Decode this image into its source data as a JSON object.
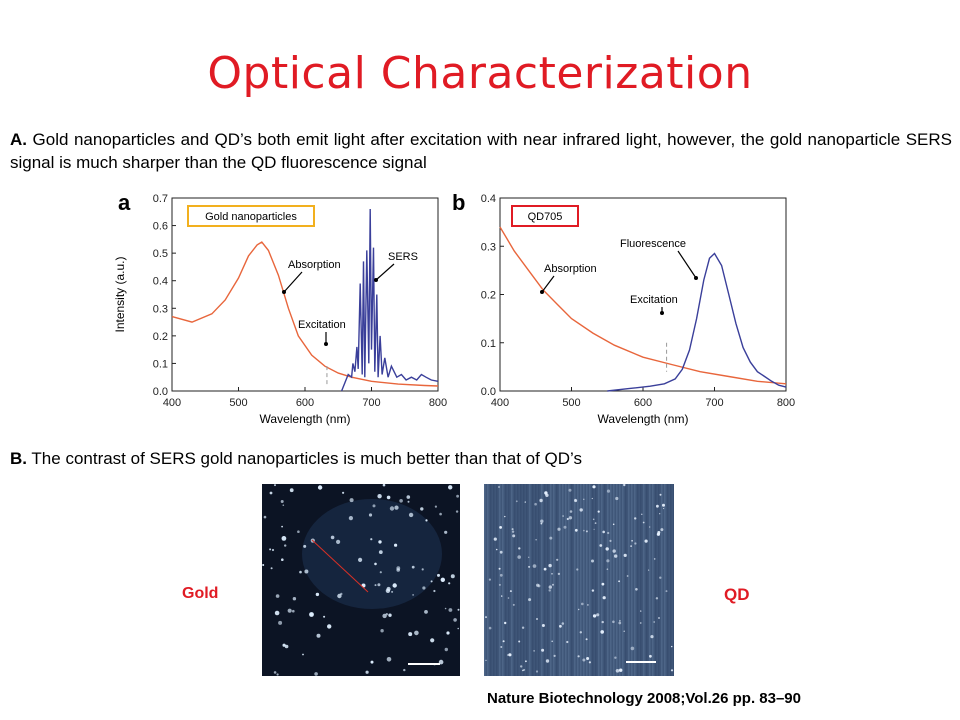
{
  "title": "Optical Characterization",
  "paragraph_a": {
    "lead": "A.",
    "text": "Gold nanoparticles and QD’s both emit light after excitation with near infrared light, however, the gold nanoparticle SERS signal is much sharper than the QD fluorescence signal"
  },
  "paragraph_b": {
    "lead": "B.",
    "text": "The contrast of SERS gold nanoparticles is much better than that of QD’s"
  },
  "images": {
    "left_label": "Gold",
    "right_label": "QD"
  },
  "citation": "Nature Biotechnology 2008;Vol.26 pp. 83–90",
  "colors": {
    "title": "#e01b24",
    "absorption_curve": "#e8663c",
    "emission_curve": "#3a3f9a",
    "gold_box": "#f2b01e",
    "qd_box": "#e01b24",
    "label_red": "#e01b24"
  },
  "chart_data": [
    {
      "type": "line",
      "panel_letter": "a",
      "legend_box": "Gold nanoparticles",
      "xlabel": "Wavelength (nm)",
      "ylabel": "Intensity (a.u.)",
      "xlim": [
        400,
        800
      ],
      "ylim": [
        0.0,
        0.7
      ],
      "x_ticks": [
        "400",
        "500",
        "600",
        "700",
        "800"
      ],
      "y_ticks": [
        "0.0",
        "0.1",
        "0.2",
        "0.3",
        "0.4",
        "0.5",
        "0.6",
        "0.7"
      ],
      "annotations": [
        "Absorption",
        "SERS",
        "Excitation"
      ],
      "excitation_nm": 633,
      "series": [
        {
          "name": "Absorption",
          "x": [
            400,
            430,
            460,
            480,
            500,
            515,
            528,
            535,
            545,
            560,
            575,
            590,
            610,
            630,
            650,
            670,
            700,
            740,
            780,
            800
          ],
          "y": [
            0.27,
            0.25,
            0.28,
            0.33,
            0.41,
            0.49,
            0.53,
            0.54,
            0.51,
            0.42,
            0.3,
            0.2,
            0.13,
            0.09,
            0.065,
            0.05,
            0.035,
            0.025,
            0.02,
            0.018
          ]
        },
        {
          "name": "SERS",
          "x": [
            655,
            660,
            665,
            670,
            672,
            675,
            678,
            680,
            683,
            686,
            688,
            690,
            693,
            696,
            698,
            700,
            703,
            705,
            708,
            710,
            713,
            716,
            720,
            725,
            730,
            738,
            745,
            752,
            760,
            768,
            775,
            782,
            790,
            800
          ],
          "y": [
            0.0,
            0.03,
            0.06,
            0.05,
            0.1,
            0.07,
            0.16,
            0.08,
            0.39,
            0.06,
            0.47,
            0.05,
            0.51,
            0.1,
            0.66,
            0.15,
            0.52,
            0.07,
            0.35,
            0.05,
            0.2,
            0.06,
            0.12,
            0.05,
            0.09,
            0.05,
            0.06,
            0.04,
            0.05,
            0.04,
            0.06,
            0.05,
            0.04,
            0.035
          ]
        }
      ]
    },
    {
      "type": "line",
      "panel_letter": "b",
      "legend_box": "QD705",
      "xlabel": "Wavelength (nm)",
      "ylabel": "",
      "xlim": [
        400,
        800
      ],
      "ylim": [
        0.0,
        0.4
      ],
      "x_ticks": [
        "400",
        "500",
        "600",
        "700",
        "800"
      ],
      "y_ticks": [
        "0.0",
        "0.1",
        "0.2",
        "0.3",
        "0.4"
      ],
      "annotations": [
        "Absorption",
        "Fluorescence",
        "Excitation"
      ],
      "excitation_nm": 633,
      "series": [
        {
          "name": "Absorption",
          "x": [
            400,
            420,
            440,
            460,
            480,
            500,
            530,
            560,
            600,
            640,
            680,
            720,
            760,
            800
          ],
          "y": [
            0.34,
            0.29,
            0.25,
            0.21,
            0.18,
            0.15,
            0.12,
            0.095,
            0.07,
            0.055,
            0.04,
            0.03,
            0.02,
            0.015
          ]
        },
        {
          "name": "Fluorescence",
          "x": [
            550,
            580,
            610,
            630,
            645,
            655,
            665,
            675,
            685,
            693,
            700,
            710,
            720,
            730,
            740,
            750,
            760,
            770,
            780,
            790,
            800
          ],
          "y": [
            0.0,
            0.005,
            0.01,
            0.015,
            0.025,
            0.045,
            0.085,
            0.15,
            0.23,
            0.275,
            0.285,
            0.26,
            0.2,
            0.14,
            0.09,
            0.06,
            0.04,
            0.03,
            0.02,
            0.012,
            0.008
          ]
        }
      ]
    }
  ]
}
